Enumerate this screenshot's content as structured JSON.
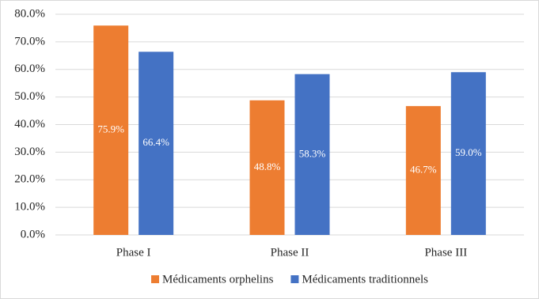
{
  "chart_data": {
    "type": "bar",
    "categories": [
      "Phase I",
      "Phase II",
      "Phase III"
    ],
    "series": [
      {
        "name": "Médicaments orphelins",
        "color": "#ed7d31",
        "values": [
          75.9,
          48.8,
          46.7
        ],
        "value_labels": [
          "75.9%",
          "48.8%",
          "46.7%"
        ]
      },
      {
        "name": "Médicaments traditionnels",
        "color": "#4472c4",
        "values": [
          66.4,
          58.3,
          59.0
        ],
        "value_labels": [
          "66.4%",
          "58.3%",
          "59.0%"
        ]
      }
    ],
    "ylim": [
      0,
      80
    ],
    "yticks": [
      {
        "value": 0,
        "label": "0.0%"
      },
      {
        "value": 10,
        "label": "10.0%"
      },
      {
        "value": 20,
        "label": "20.0%"
      },
      {
        "value": 30,
        "label": "30.0%"
      },
      {
        "value": 40,
        "label": "40.0%"
      },
      {
        "value": 50,
        "label": "50.0%"
      },
      {
        "value": 60,
        "label": "60.0%"
      },
      {
        "value": 70,
        "label": "70.0%"
      },
      {
        "value": 80,
        "label": "80.0%"
      }
    ],
    "grid": true,
    "legend": "bottom"
  }
}
